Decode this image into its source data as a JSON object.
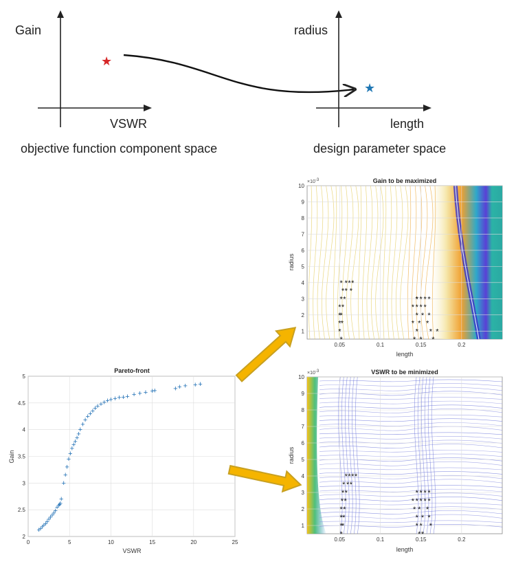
{
  "schematic": {
    "left": {
      "y_label": "Gain",
      "x_label": "VSWR",
      "caption": "objective function component space",
      "marker_color": "#d62728"
    },
    "right": {
      "y_label": "radius",
      "x_label": "length",
      "caption": "design parameter space",
      "marker_color": "#1f77b4"
    }
  },
  "colors": {
    "arrow_fill": "#f5b400",
    "arrow_edge": "#c8a020",
    "pareto": "#1f6fb5",
    "marker": "#111111"
  },
  "chart_data": [
    {
      "type": "scatter",
      "title": "Pareto-front",
      "xlabel": "VSWR",
      "ylabel": "Gain",
      "xlim": [
        0,
        25
      ],
      "ylim": [
        2,
        5
      ],
      "xticks": [
        0,
        5,
        10,
        15,
        20,
        25
      ],
      "yticks": [
        2,
        2.5,
        3,
        3.5,
        4,
        4.5,
        5
      ],
      "xtick_labels": [
        "0",
        "5",
        "10",
        "15",
        "20",
        "25"
      ],
      "ytick_labels": [
        "2",
        "2.5",
        "3",
        "3.5",
        "4",
        "4.5",
        "5"
      ],
      "grid": true,
      "marker": "+",
      "series": [
        {
          "name": "Pareto-front",
          "x": [
            1.3,
            1.5,
            1.7,
            1.9,
            2.1,
            2.3,
            2.5,
            2.7,
            2.9,
            3.1,
            3.3,
            3.5,
            3.7,
            3.8,
            3.9,
            4.0,
            4.3,
            4.5,
            4.7,
            4.9,
            5.1,
            5.3,
            5.5,
            5.7,
            5.9,
            6.1,
            6.3,
            6.6,
            6.9,
            7.2,
            7.5,
            7.8,
            8.1,
            8.4,
            8.8,
            9.2,
            9.6,
            10.0,
            10.5,
            11.0,
            11.5,
            12.0,
            12.8,
            13.5,
            14.2,
            15.0,
            15.3,
            17.8,
            18.3,
            19.0,
            20.2,
            20.8
          ],
          "y": [
            2.12,
            2.15,
            2.18,
            2.21,
            2.24,
            2.28,
            2.32,
            2.36,
            2.4,
            2.44,
            2.48,
            2.55,
            2.58,
            2.6,
            2.62,
            2.7,
            3.0,
            3.15,
            3.3,
            3.45,
            3.55,
            3.65,
            3.72,
            3.78,
            3.85,
            3.92,
            4.0,
            4.1,
            4.18,
            4.25,
            4.3,
            4.35,
            4.4,
            4.44,
            4.48,
            4.51,
            4.54,
            4.56,
            4.58,
            4.6,
            4.61,
            4.62,
            4.66,
            4.68,
            4.7,
            4.72,
            4.73,
            4.77,
            4.8,
            4.82,
            4.84,
            4.85
          ]
        }
      ]
    },
    {
      "type": "contour",
      "title": "Gain to be maximized",
      "xlabel": "length",
      "ylabel": "radius",
      "exponent_label": "×10",
      "exponent_power": "-3",
      "xlim": [
        0.01,
        0.25
      ],
      "ylim": [
        0.5,
        10
      ],
      "xticks": [
        0.05,
        0.1,
        0.15,
        0.2
      ],
      "yticks": [
        1,
        2,
        3,
        4,
        5,
        6,
        7,
        8,
        9,
        10
      ],
      "xtick_labels": [
        "0.05",
        "0.1",
        "0.15",
        "0.2"
      ],
      "ytick_labels": [
        "1",
        "2",
        "3",
        "4",
        "5",
        "6",
        "7",
        "8",
        "9",
        "10"
      ],
      "grid": true,
      "marker": "*",
      "points": {
        "x": [
          0.052,
          0.058,
          0.062,
          0.066,
          0.054,
          0.058,
          0.064,
          0.052,
          0.056,
          0.05,
          0.054,
          0.05,
          0.052,
          0.05,
          0.053,
          0.05,
          0.052,
          0.145,
          0.15,
          0.155,
          0.16,
          0.14,
          0.145,
          0.15,
          0.155,
          0.145,
          0.16,
          0.14,
          0.148,
          0.158,
          0.145,
          0.162,
          0.142,
          0.15,
          0.165,
          0.145,
          0.152,
          0.17
        ],
        "y": [
          4.0,
          4.0,
          4.0,
          4.0,
          3.5,
          3.5,
          3.5,
          3.0,
          3.0,
          2.5,
          2.5,
          2.0,
          2.0,
          1.5,
          1.5,
          1.0,
          0.5,
          3.0,
          3.0,
          3.0,
          3.0,
          2.5,
          2.5,
          2.5,
          2.5,
          2.0,
          2.0,
          1.5,
          1.5,
          1.5,
          1.0,
          1.0,
          0.5,
          0.5,
          0.5,
          3.0,
          2.0,
          1.0
        ]
      }
    },
    {
      "type": "contour",
      "title": "VSWR to be minimized",
      "xlabel": "length",
      "ylabel": "radius",
      "exponent_label": "×10",
      "exponent_power": "-3",
      "xlim": [
        0.01,
        0.25
      ],
      "ylim": [
        0.5,
        10
      ],
      "xticks": [
        0.05,
        0.1,
        0.15,
        0.2
      ],
      "yticks": [
        1,
        2,
        3,
        4,
        5,
        6,
        7,
        8,
        9,
        10
      ],
      "xtick_labels": [
        "0.05",
        "0.1",
        "0.15",
        "0.2"
      ],
      "ytick_labels": [
        "1",
        "2",
        "3",
        "4",
        "5",
        "6",
        "7",
        "8",
        "9",
        "10"
      ],
      "grid": true,
      "marker": "*",
      "points": {
        "x": [
          0.058,
          0.062,
          0.066,
          0.07,
          0.055,
          0.06,
          0.064,
          0.054,
          0.058,
          0.053,
          0.057,
          0.052,
          0.056,
          0.052,
          0.055,
          0.052,
          0.054,
          0.052,
          0.145,
          0.15,
          0.155,
          0.16,
          0.14,
          0.145,
          0.15,
          0.155,
          0.16,
          0.142,
          0.148,
          0.158,
          0.145,
          0.152,
          0.16,
          0.145,
          0.15,
          0.162,
          0.148,
          0.152
        ],
        "y": [
          4.0,
          4.0,
          4.0,
          4.0,
          3.5,
          3.5,
          3.5,
          3.0,
          3.0,
          2.5,
          2.5,
          2.0,
          2.0,
          1.5,
          1.5,
          1.0,
          1.0,
          0.5,
          3.0,
          3.0,
          3.0,
          3.0,
          2.5,
          2.5,
          2.5,
          2.5,
          2.5,
          2.0,
          2.0,
          2.0,
          1.5,
          1.5,
          1.5,
          1.0,
          1.0,
          1.0,
          0.5,
          0.5
        ]
      }
    }
  ]
}
